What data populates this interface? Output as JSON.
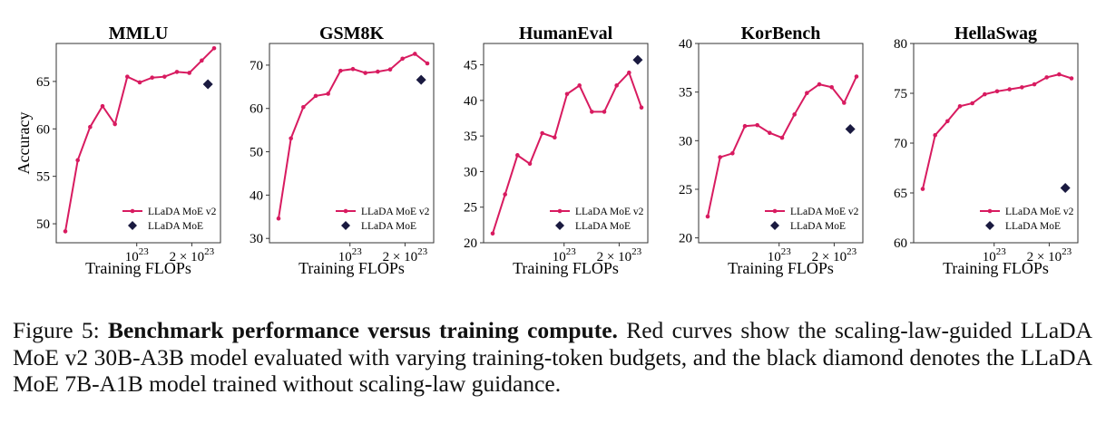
{
  "chart_data": [
    {
      "type": "line",
      "title": "MMLU",
      "xlabel": "Training FLOPs",
      "ylabel": "Accuracy",
      "xticks": [
        "10^23",
        "2 × 10^23"
      ],
      "yticks": [
        50,
        55,
        60,
        65
      ],
      "ylim": [
        48,
        69
      ],
      "legend_position": "lower-right",
      "series": [
        {
          "name": "LLaDA MoE v2",
          "color": "#d81b60",
          "marker": "circle",
          "values": [
            49.2,
            56.7,
            60.2,
            62.4,
            60.5,
            65.5,
            64.9,
            65.4,
            65.5,
            66.0,
            65.9,
            67.2,
            68.5
          ]
        },
        {
          "name": "LLaDA MoE",
          "color": "#1a1a40",
          "marker": "diamond",
          "x_index": 11.5,
          "value": 64.7
        }
      ]
    },
    {
      "type": "line",
      "title": "GSM8K",
      "xlabel": "Training FLOPs",
      "ylabel": "",
      "xticks": [
        "10^23",
        "2 × 10^23"
      ],
      "yticks": [
        30,
        40,
        50,
        60,
        70
      ],
      "ylim": [
        29,
        75
      ],
      "legend_position": "lower-right",
      "series": [
        {
          "name": "LLaDA MoE v2",
          "color": "#d81b60",
          "marker": "circle",
          "values": [
            34.6,
            53.1,
            60.3,
            62.9,
            63.4,
            68.7,
            69.1,
            68.2,
            68.5,
            69.0,
            71.5,
            72.6,
            70.4
          ]
        },
        {
          "name": "LLaDA MoE",
          "color": "#1a1a40",
          "marker": "diamond",
          "x_index": 11.5,
          "value": 66.6
        }
      ]
    },
    {
      "type": "line",
      "title": "HumanEval",
      "xlabel": "Training FLOPs",
      "ylabel": "",
      "xticks": [
        "10^23",
        "2 × 10^23"
      ],
      "yticks": [
        20,
        25,
        30,
        35,
        40,
        45
      ],
      "ylim": [
        20,
        48
      ],
      "legend_position": "lower-right",
      "series": [
        {
          "name": "LLaDA MoE v2",
          "color": "#d81b60",
          "marker": "circle",
          "values": [
            21.3,
            26.8,
            32.3,
            31.1,
            35.4,
            34.8,
            40.9,
            42.1,
            38.4,
            38.4,
            42.1,
            43.9,
            39.0
          ]
        },
        {
          "name": "LLaDA MoE",
          "color": "#1a1a40",
          "marker": "diamond",
          "x_index": 11.7,
          "value": 45.7
        }
      ]
    },
    {
      "type": "line",
      "title": "KorBench",
      "xlabel": "Training FLOPs",
      "ylabel": "",
      "xticks": [
        "10^23",
        "2 × 10^23"
      ],
      "yticks": [
        20,
        25,
        30,
        35,
        40
      ],
      "ylim": [
        19.5,
        40
      ],
      "legend_position": "lower-right",
      "series": [
        {
          "name": "LLaDA MoE v2",
          "color": "#d81b60",
          "marker": "circle",
          "values": [
            22.2,
            28.3,
            28.7,
            31.5,
            31.6,
            30.8,
            30.3,
            32.7,
            34.9,
            35.8,
            35.5,
            33.9,
            36.6
          ]
        },
        {
          "name": "LLaDA MoE",
          "color": "#1a1a40",
          "marker": "diamond",
          "x_index": 11.5,
          "value": 31.2
        }
      ]
    },
    {
      "type": "line",
      "title": "HellaSwag",
      "xlabel": "Training FLOPs",
      "ylabel": "",
      "xticks": [
        "10^23",
        "2 × 10^23"
      ],
      "yticks": [
        60,
        65,
        70,
        75,
        80
      ],
      "ylim": [
        60,
        80
      ],
      "legend_position": "lower-right",
      "series": [
        {
          "name": "LLaDA MoE v2",
          "color": "#d81b60",
          "marker": "circle",
          "values": [
            65.4,
            70.8,
            72.2,
            73.7,
            74.0,
            74.9,
            75.2,
            75.4,
            75.6,
            75.9,
            76.6,
            76.9,
            76.5
          ]
        },
        {
          "name": "LLaDA MoE",
          "color": "#1a1a40",
          "marker": "diamond",
          "x_index": 11.5,
          "value": 65.5
        }
      ]
    }
  ],
  "caption": {
    "label": "Figure 5: ",
    "bold": "Benchmark performance versus training compute.",
    "text": " Red curves show the scaling-law-guided LLaDA MoE v2 30B-A3B model evaluated with varying training-token budgets, and the black diamond denotes the LLaDA MoE 7B-A1B model trained without scaling-law guidance."
  }
}
